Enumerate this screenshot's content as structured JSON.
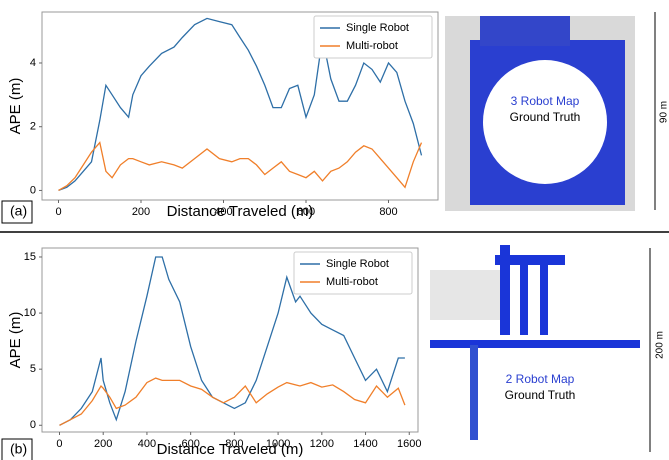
{
  "chart_data": [
    {
      "type": "line",
      "panel_label": "(a)",
      "xlabel": "Distance Traveled (m)",
      "ylabel": "APE (m)",
      "x": [
        0,
        20,
        40,
        60,
        80,
        100,
        115,
        130,
        150,
        170,
        180,
        200,
        220,
        250,
        280,
        300,
        330,
        360,
        390,
        420,
        440,
        460,
        480,
        500,
        520,
        540,
        560,
        580,
        600,
        620,
        640,
        660,
        680,
        700,
        720,
        740,
        760,
        780,
        800,
        820,
        840,
        860,
        880
      ],
      "series": [
        {
          "name": "Single Robot",
          "color": "#2e6fa7",
          "values": [
            0,
            0.1,
            0.3,
            0.6,
            0.9,
            2.2,
            3.3,
            3.0,
            2.6,
            2.3,
            3.0,
            3.6,
            3.9,
            4.3,
            4.5,
            4.8,
            5.2,
            5.4,
            5.3,
            5.2,
            4.8,
            4.4,
            3.9,
            3.3,
            2.6,
            2.6,
            3.2,
            3.3,
            2.3,
            3.0,
            4.8,
            3.5,
            2.8,
            2.8,
            3.3,
            4.0,
            3.8,
            3.4,
            4.0,
            3.7,
            2.8,
            2.1,
            1.1
          ]
        },
        {
          "name": "Multi-robot",
          "color": "#f07f2a",
          "values": [
            0,
            0.15,
            0.4,
            0.8,
            1.2,
            1.5,
            0.6,
            0.4,
            0.8,
            1.0,
            1.0,
            0.9,
            0.8,
            0.9,
            0.8,
            0.7,
            1.0,
            1.3,
            1.0,
            0.9,
            1.0,
            1.0,
            0.8,
            0.5,
            0.7,
            0.9,
            0.6,
            0.5,
            0.4,
            0.6,
            0.3,
            0.6,
            0.7,
            0.9,
            1.2,
            1.4,
            1.3,
            1.0,
            0.7,
            0.4,
            0.1,
            0.9,
            1.5
          ]
        }
      ],
      "xlim": [
        -40,
        920
      ],
      "ylim": [
        -0.3,
        5.6
      ],
      "xticks": [
        0,
        200,
        400,
        600,
        800
      ],
      "yticks": [
        0,
        2,
        4
      ],
      "legend": "upper right",
      "map_title": "3 Robot Map",
      "map_subtitle": "Ground Truth",
      "scale_label": "90 m"
    },
    {
      "type": "line",
      "panel_label": "(b)",
      "xlabel": "Distance Traveled (m)",
      "ylabel": "APE (m)",
      "x": [
        0,
        50,
        100,
        150,
        190,
        200,
        230,
        260,
        300,
        350,
        400,
        440,
        470,
        500,
        550,
        600,
        650,
        700,
        750,
        800,
        850,
        900,
        950,
        1000,
        1040,
        1080,
        1100,
        1150,
        1200,
        1250,
        1300,
        1350,
        1400,
        1450,
        1500,
        1550,
        1580
      ],
      "series": [
        {
          "name": "Single Robot",
          "color": "#2e6fa7",
          "values": [
            0,
            0.5,
            1.5,
            3.0,
            6.0,
            4.0,
            2.0,
            0.5,
            3.0,
            7.5,
            11.5,
            15,
            15,
            13,
            11,
            7,
            4,
            2.5,
            2.0,
            1.5,
            2.0,
            4,
            7,
            10,
            13.2,
            11,
            11.5,
            10,
            9,
            8.5,
            8,
            6,
            4,
            5,
            3,
            6,
            6
          ]
        },
        {
          "name": "Multi-robot",
          "color": "#f07f2a",
          "values": [
            0,
            0.5,
            1.0,
            2.2,
            3.5,
            3.3,
            2.5,
            1.5,
            1.8,
            2.5,
            3.8,
            4.2,
            4.0,
            4.0,
            4.0,
            3.5,
            3.2,
            2.5,
            2.0,
            2.5,
            3.5,
            2.0,
            2.8,
            3.4,
            3.8,
            3.6,
            3.5,
            3.8,
            3.4,
            3.6,
            3.0,
            2.3,
            2.0,
            3.5,
            2.5,
            3.3,
            1.8
          ]
        }
      ],
      "xlim": [
        -80,
        1640
      ],
      "ylim": [
        -0.6,
        15.8
      ],
      "xticks": [
        0,
        200,
        400,
        600,
        800,
        1000,
        1200,
        1400,
        1600
      ],
      "yticks": [
        0,
        5,
        10,
        15
      ],
      "legend": "upper right",
      "map_title": "2 Robot Map",
      "map_subtitle": "Ground Truth",
      "scale_label": "200 m"
    }
  ]
}
